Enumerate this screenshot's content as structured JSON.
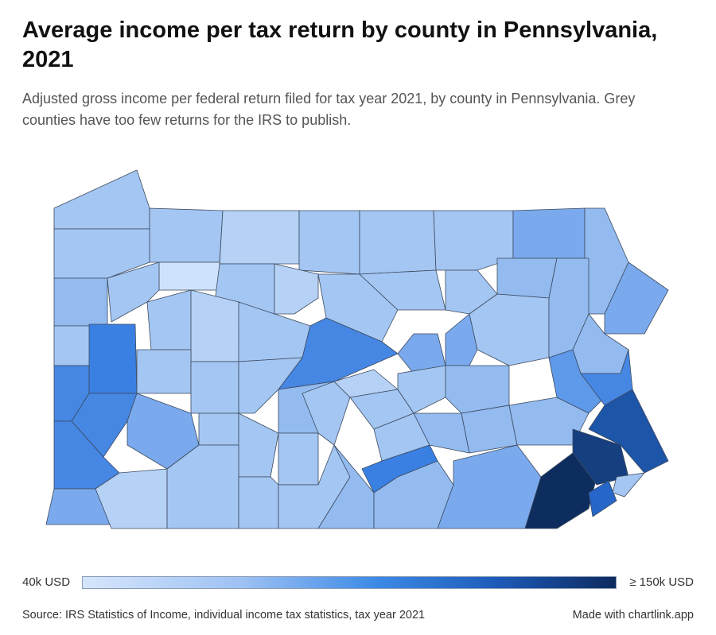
{
  "title": "Average income per tax return by county in Pennsylvania, 2021",
  "subtitle": "Adjusted gross income per federal return filed for tax year 2021, by county in Pennsylvania. Grey counties have too few returns for the IRS to publish.",
  "legend": {
    "min_label": "40k USD",
    "max_label": "≥ 150k USD",
    "colors": [
      "#d6e6fb",
      "#9dc1f3",
      "#3d8ae6",
      "#1d5ab8",
      "#0d2a5e"
    ]
  },
  "source": "Source: IRS Statistics of Income, individual income tax statistics, tax year 2021",
  "credit": "Made with chartlink.app",
  "palette": {
    "c1": "#cfe2fb",
    "c2": "#b5d1f6",
    "c3": "#a4c6f3",
    "c4": "#93bbf0",
    "c5": "#7aaaed",
    "c6": "#5f99ea",
    "c7": "#4687e4",
    "c8": "#3a80e2",
    "c9": "#2566c8",
    "c10": "#1d55a8",
    "c11": "#163f80",
    "c12": "#0d2d5f"
  }
}
